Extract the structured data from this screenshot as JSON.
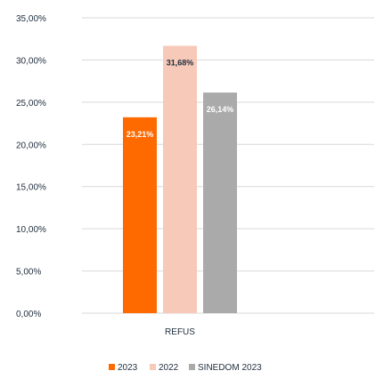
{
  "chart_data": {
    "type": "bar",
    "categories": [
      "REFUS"
    ],
    "series": [
      {
        "name": "2023",
        "color": "#ff6a00",
        "values": [
          23.21
        ],
        "label": "23,21%",
        "label_color": "#ffffff"
      },
      {
        "name": "2022",
        "color": "#f7c9b8",
        "values": [
          31.68
        ],
        "label": "31,68%",
        "label_color": "#1f2d3d"
      },
      {
        "name": "SINEDOM 2023",
        "color": "#aaaaaa",
        "values": [
          26.14
        ],
        "label": "26,14%",
        "label_color": "#ffffff"
      }
    ],
    "y_ticks": [
      "0,00%",
      "5,00%",
      "10,00%",
      "15,00%",
      "20,00%",
      "25,00%",
      "30,00%",
      "35,00%"
    ],
    "ylim": [
      0,
      35
    ],
    "grid": true,
    "legend_position": "bottom",
    "title": "",
    "xlabel": "",
    "ylabel": ""
  }
}
